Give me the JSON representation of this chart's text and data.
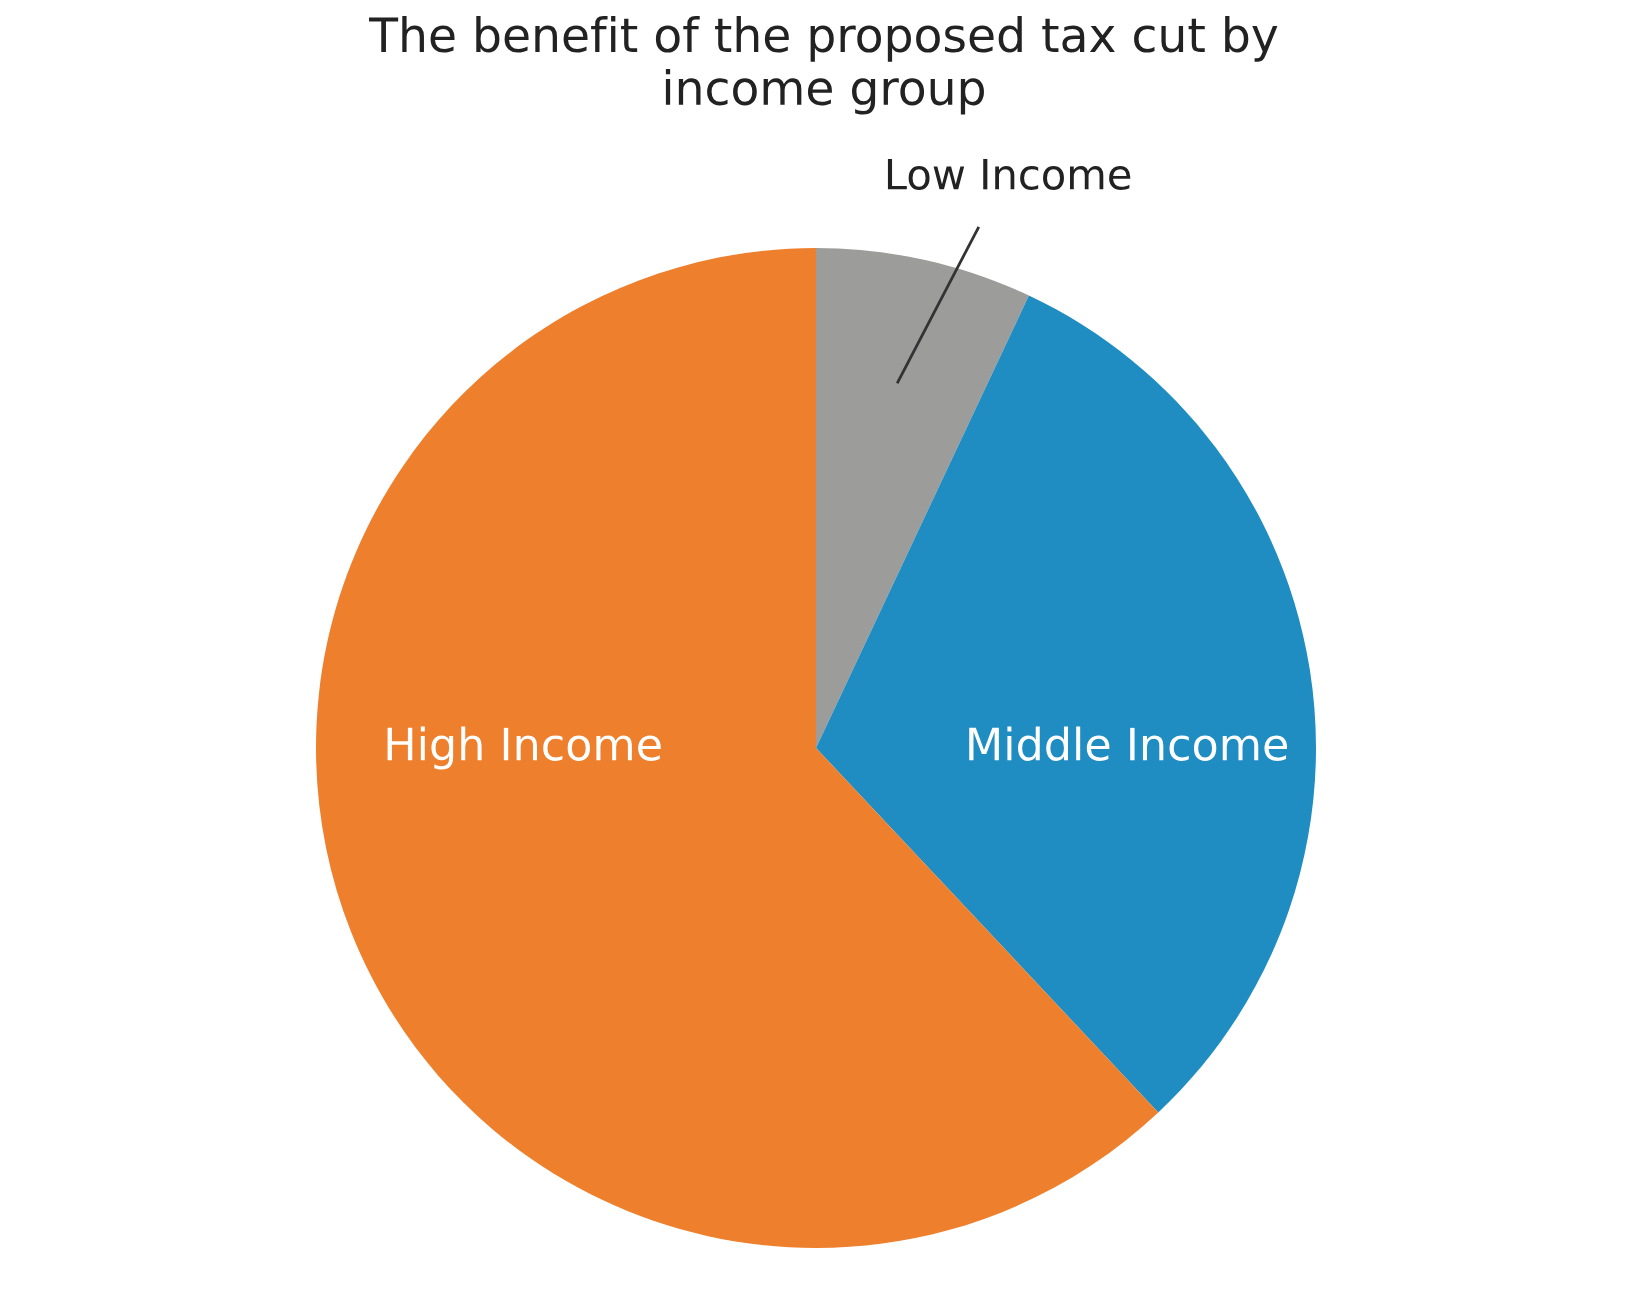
{
  "chart_data": {
    "type": "pie",
    "title": "The benefit of the proposed tax cut by\nincome group",
    "categories": [
      "Low Income",
      "Middle Income",
      "High Income"
    ],
    "values": [
      7,
      31,
      62
    ],
    "colors": [
      "#9c9c9a",
      "#1f8dc2",
      "#ee7f2d"
    ]
  }
}
